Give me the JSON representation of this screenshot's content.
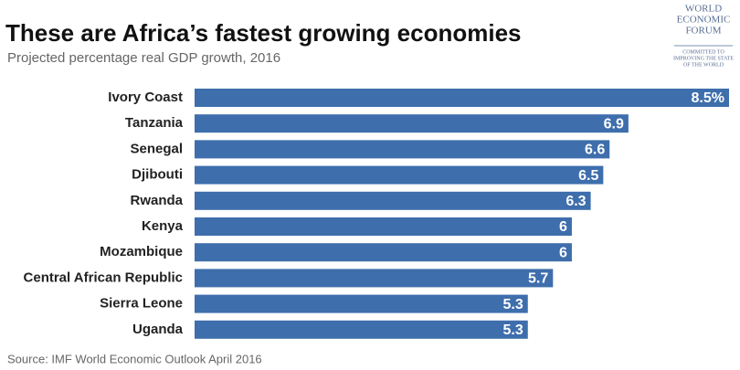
{
  "chart_data": {
    "type": "bar",
    "orientation": "horizontal",
    "title": "These are Africa’s fastest growing economies",
    "subtitle": "Projected percentage real GDP growth, 2016",
    "categories": [
      "Ivory Coast",
      "Tanzania",
      "Senegal",
      "Djibouti",
      "Rwanda",
      "Kenya",
      "Mozambique",
      "Central African Republic",
      "Sierra Leone",
      "Uganda"
    ],
    "values": [
      8.5,
      6.9,
      6.6,
      6.5,
      6.3,
      6,
      6,
      5.7,
      5.3,
      5.3
    ],
    "value_labels": [
      "8.5%",
      "6.9",
      "6.6",
      "6.5",
      "6.3",
      "6",
      "6",
      "5.7",
      "5.3",
      "5.3"
    ],
    "color": "#3e6eac",
    "source": "Source: IMF World Economic Outlook April 2016"
  },
  "logo": {
    "name_lines": [
      "WORLD",
      "ECONOMIC",
      "FORUM"
    ],
    "motto_lines": [
      "COMMITTED TO",
      "IMPROVING THE STATE",
      "OF THE WORLD"
    ]
  }
}
